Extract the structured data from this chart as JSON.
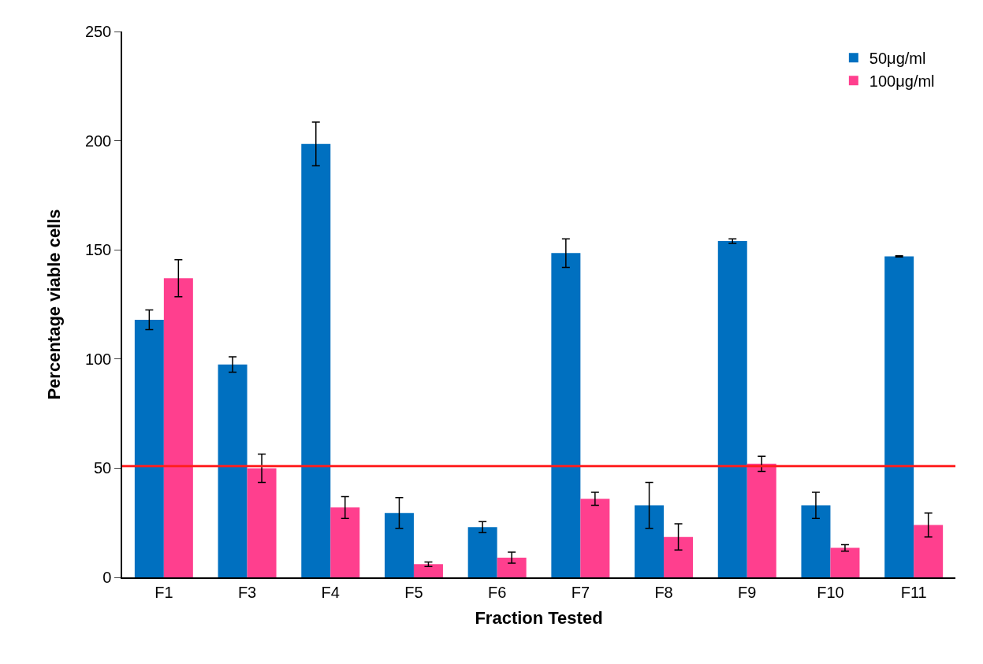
{
  "chart_data": {
    "type": "bar",
    "xlabel": "Fraction Tested",
    "ylabel": "Percentage viable cells",
    "categories": [
      "F1",
      "F3",
      "F4",
      "F5",
      "F6",
      "F7",
      "F8",
      "F9",
      "F10",
      "F11"
    ],
    "series": [
      {
        "name": "50μg/ml",
        "color": "#0070c0",
        "values": [
          118,
          97.5,
          198.5,
          29.5,
          23,
          148.5,
          33,
          154,
          33,
          147
        ],
        "errors": [
          4.5,
          3.5,
          10,
          7,
          2.5,
          6.5,
          10.5,
          1,
          6,
          0.3
        ]
      },
      {
        "name": "100μg/ml",
        "color": "#ff3f8e",
        "values": [
          137,
          50,
          32,
          6,
          9,
          36,
          18.5,
          52,
          13.5,
          24
        ],
        "errors": [
          8.5,
          6.5,
          5,
          1,
          2.5,
          3,
          6,
          3.5,
          1.5,
          5.5
        ]
      }
    ],
    "ylim": [
      0,
      250
    ],
    "yticks": [
      0,
      50,
      100,
      150,
      200,
      250
    ],
    "ref_lines": [
      {
        "axis": "y",
        "value": 51,
        "color": "#ff2020",
        "line_style": "solid"
      }
    ],
    "grid": false,
    "legend": "top right"
  }
}
